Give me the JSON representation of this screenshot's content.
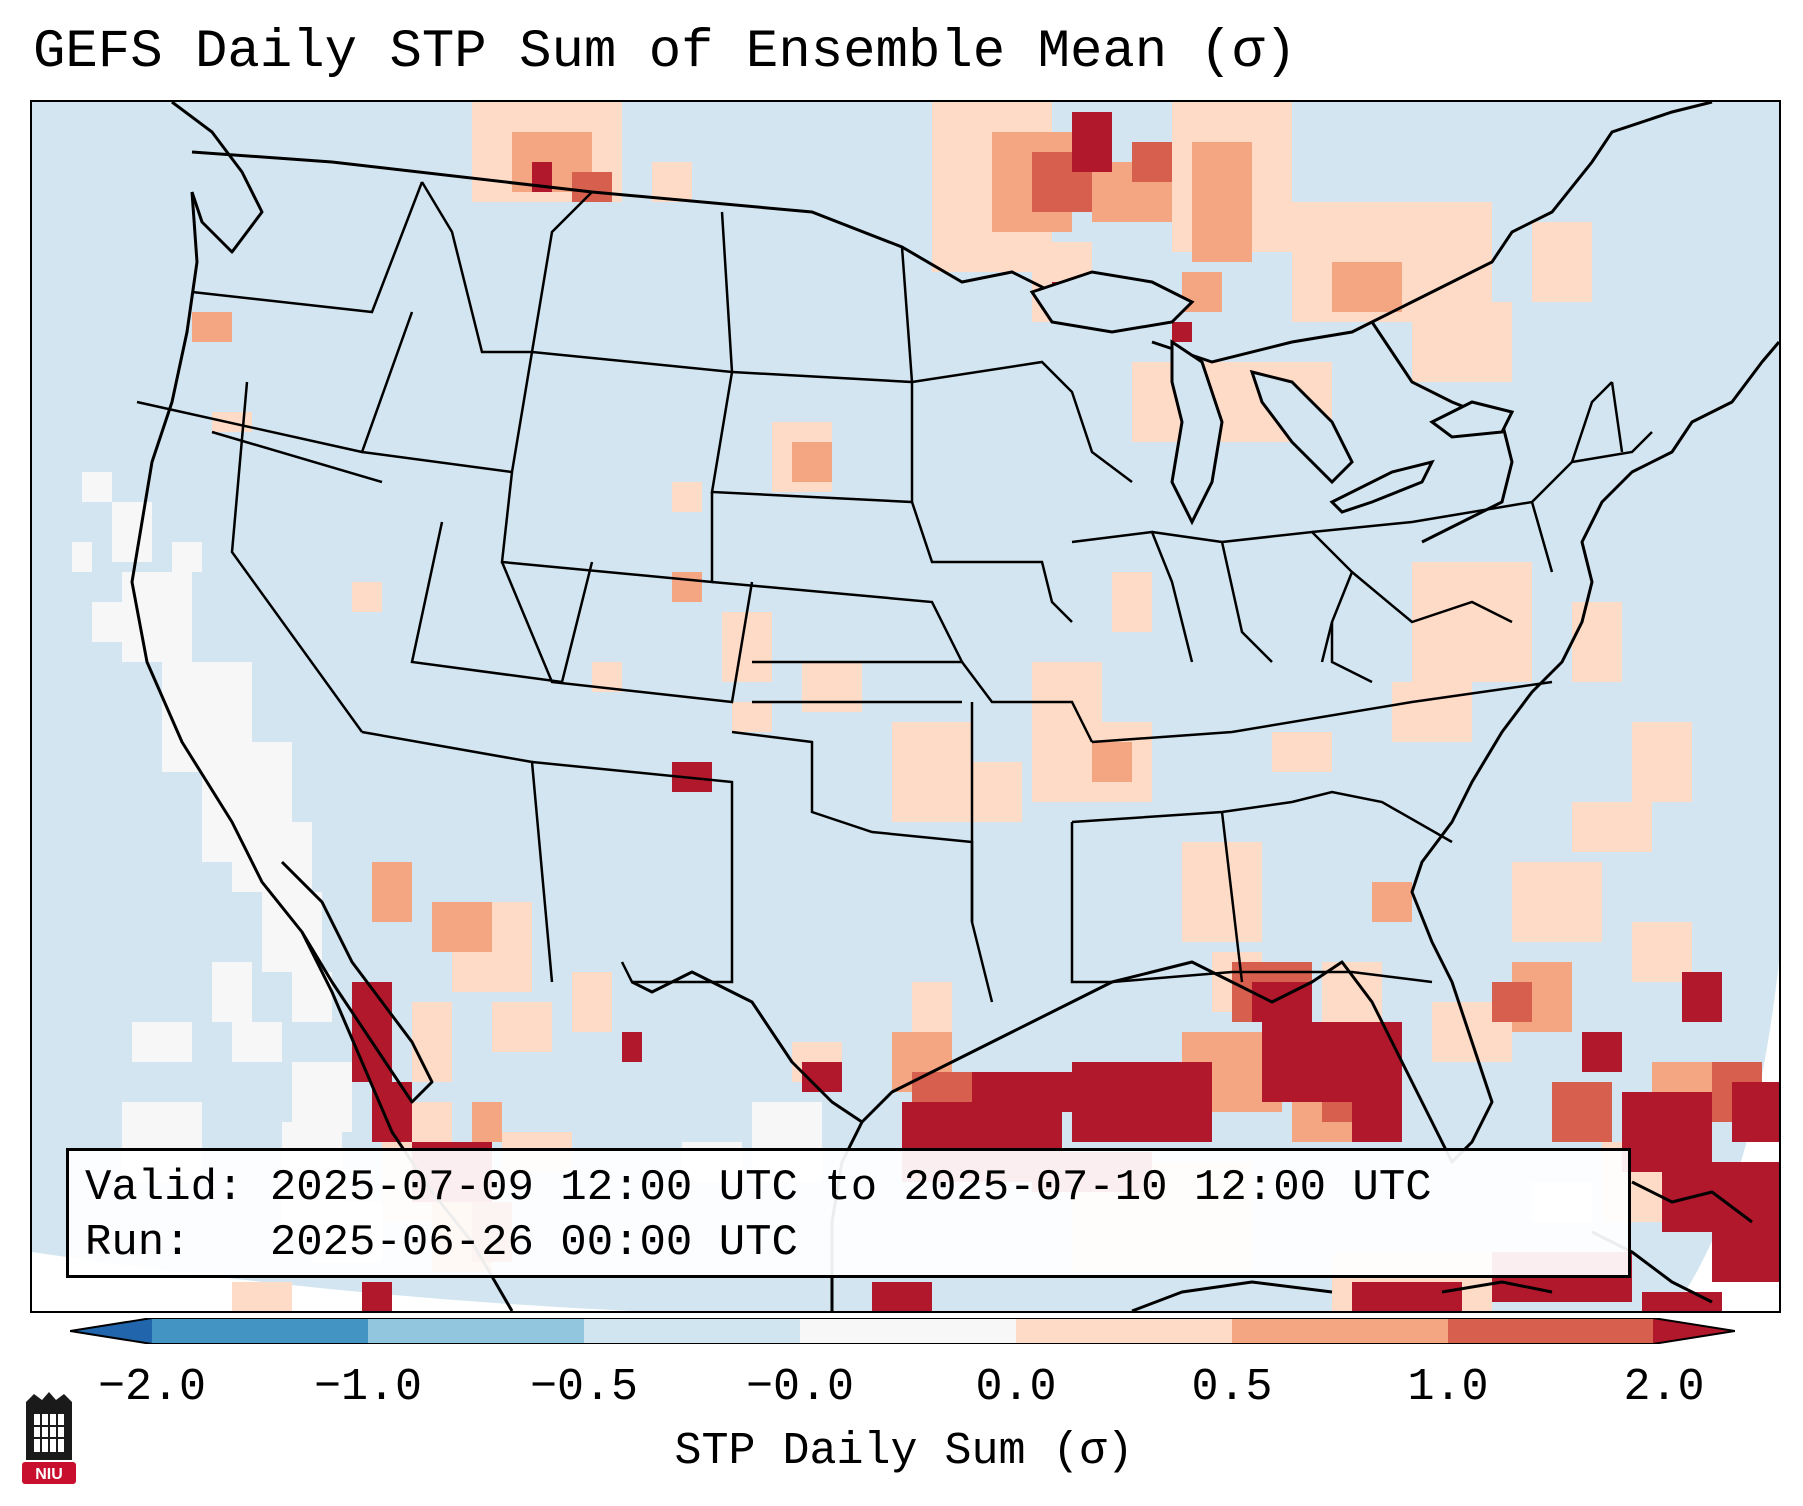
{
  "title": "GEFS Daily STP Sum of Ensemble Mean (σ)",
  "info": {
    "valid_label": "Valid:",
    "valid_value": "2025-07-09 12:00 UTC to 2025-07-10 12:00 UTC",
    "run_label": "Run:",
    "run_value": "2025-06-26 00:00 UTC"
  },
  "colorbar": {
    "label": "STP Daily Sum (σ)",
    "ticks": [
      "−2.0",
      "−1.0",
      "−0.5",
      "−0.0",
      "0.0",
      "0.5",
      "1.0",
      "2.0"
    ],
    "colors": [
      "#4393c3",
      "#92c5de",
      "#d1e5f0",
      "#f7f7f7",
      "#fddbc7",
      "#f4a582",
      "#d6604d",
      "#b2182b"
    ],
    "under_color": "#2166ac",
    "over_color": "#b2182b"
  },
  "map": {
    "ocean_color": "#d2e5f0",
    "land_color": "#d2e5f0",
    "outside_color": "#ffffff",
    "border_color": "#000000"
  },
  "logo": {
    "text": "NIU",
    "color": "#c8102e"
  }
}
